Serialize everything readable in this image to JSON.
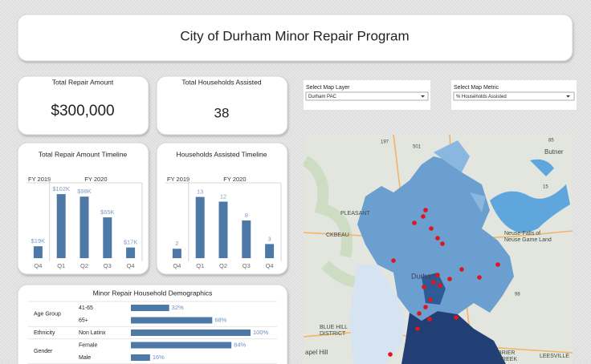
{
  "header": {
    "title": "City of Durham Minor Repair Program"
  },
  "kpis": [
    {
      "label": "Total Repair Amount",
      "value": "$300,000"
    },
    {
      "label": "Total Households Assisted",
      "value": "38"
    }
  ],
  "filters": [
    {
      "label": "Select Map Layer",
      "value": "Durham PAC"
    },
    {
      "label": "Select Map Metric",
      "value": "% Households Assisted"
    }
  ],
  "map": {
    "labels": [
      "Butner",
      "Neuse-Falls of",
      "Neuse Game Land",
      "PLEASANT",
      "CKBEAU",
      "Durham",
      "BLUE HILL",
      "DISTRICT",
      "apel Hill",
      "BRIER",
      "CREEK",
      "LEESVILLE",
      "197",
      "501",
      "85",
      "15",
      "98"
    ]
  },
  "chart_data": [
    {
      "type": "bar",
      "title": "Total Repair Amount Timeline",
      "periods": [
        "FY 2019",
        "FY 2020"
      ],
      "categories": [
        "Q4",
        "Q1",
        "Q2",
        "Q3",
        "Q4"
      ],
      "values": [
        19000,
        102000,
        98000,
        65000,
        17000
      ],
      "value_labels": [
        "$19K",
        "$102K",
        "$98K",
        "$65K",
        "$17K"
      ],
      "color": "#4e79a7",
      "ylim": [
        0,
        120000
      ]
    },
    {
      "type": "bar",
      "title": "Households Assisted Timeline",
      "periods": [
        "FY 2019",
        "FY 2020"
      ],
      "categories": [
        "Q4",
        "Q1",
        "Q2",
        "Q3",
        "Q4"
      ],
      "values": [
        2,
        13,
        12,
        8,
        3
      ],
      "color": "#4e79a7",
      "ylim": [
        0,
        16
      ]
    },
    {
      "type": "hbar",
      "title": "Minor Repair Household Demographics",
      "color": "#4e79a7",
      "xlim": [
        0,
        100
      ],
      "groups": [
        {
          "name": "Age Group",
          "categories": [
            "41-65",
            "65+"
          ],
          "values": [
            32,
            68
          ],
          "value_labels": [
            "32%",
            "68%"
          ]
        },
        {
          "name": "Ethnicity",
          "categories": [
            "Non Latinx"
          ],
          "values": [
            100
          ],
          "value_labels": [
            "100%"
          ]
        },
        {
          "name": "Gender",
          "categories": [
            "Female",
            "Male"
          ],
          "values": [
            84,
            16
          ],
          "value_labels": [
            "84%",
            "16%"
          ]
        }
      ]
    }
  ]
}
